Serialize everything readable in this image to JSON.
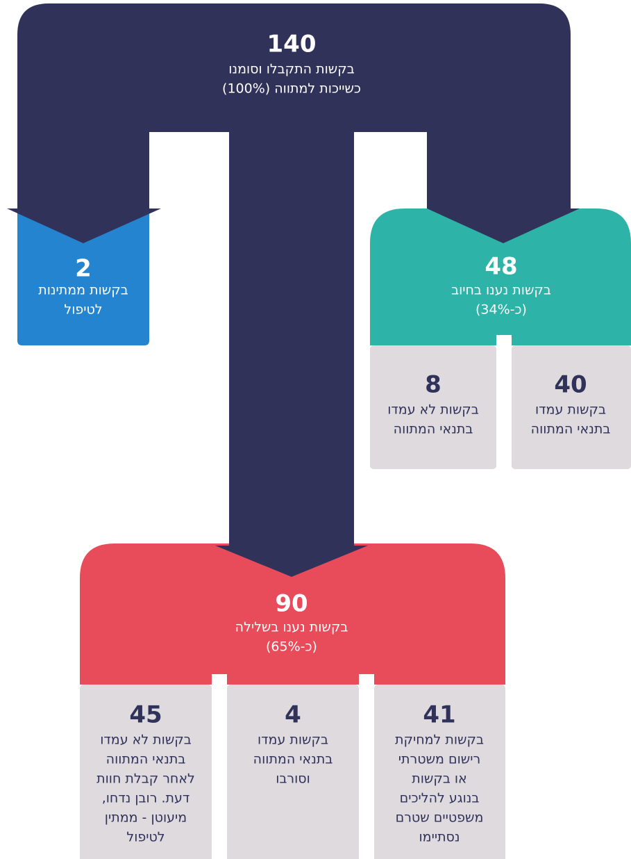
{
  "nodes": [
    {
      "value": "140",
      "lines": [
        "בקשות התקבלו וסומנו",
        "כשייכות למתווה (100%)"
      ]
    },
    {
      "value": "2",
      "lines": [
        "בקשות ממתינות",
        "לטיפול"
      ]
    },
    {
      "value": "48",
      "lines": [
        "בקשות נענו בחיוב",
        "(כ-34%)"
      ]
    },
    {
      "value": "8",
      "lines": [
        "בקשות לא עמדו",
        "בתנאי המתווה"
      ]
    },
    {
      "value": "40",
      "lines": [
        "בקשות עמדו",
        "בתנאי המתווה"
      ]
    },
    {
      "value": "90",
      "lines": [
        "בקשות נענו בשלילה",
        "(כ-65%)"
      ]
    },
    {
      "value": "45",
      "lines": [
        "בקשות לא עמדו",
        "בתנאי המתווה",
        "לאחר קבלת חוות",
        "דעת. רובן נדחו,",
        "מיעוטן - ממתין",
        "לטיפול"
      ]
    },
    {
      "value": "4",
      "lines": [
        "בקשות עמדו",
        "בתנאי המתווה",
        "וסורבו"
      ]
    },
    {
      "value": "41",
      "lines": [
        "בקשות למחיקת",
        "רישום משטרתי",
        "או בקשות",
        "בנוגע להליכים",
        "משפטיים שטרם",
        "נסתיימו"
      ]
    }
  ]
}
